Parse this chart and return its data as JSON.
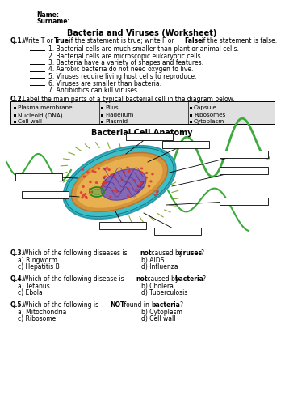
{
  "title": "Bacteria and Viruses (Worksheet)",
  "bg_color": "#ffffff",
  "name_label": "Name:",
  "surname_label": "Surname:",
  "q1_items": [
    "1. Bacterial cells are much smaller than plant or animal cells.",
    "2. Bacterial cells are microscopic eukaryotic cells.",
    "3. Bacteria have a variety of shapes and features.",
    "4. Aerobic bacteria do not need oxygen to live.",
    "5. Viruses require living host cells to reproduce.",
    "6. Viruses are smaller than bacteria.",
    "7. Antibiotics can kill viruses."
  ],
  "q2_col1": [
    "Plasma membrane",
    "Nucleoid (DNA)",
    "Cell wall"
  ],
  "q2_col2": [
    "Pilus",
    "Flagellum",
    "Plasmid"
  ],
  "q2_col3": [
    "Capsule",
    "Ribosomes",
    "Cytoplasm"
  ],
  "diagram_title": "Bacterial Cell Anatomy",
  "q3_options": [
    "a) Ringworm",
    "b) AIDS",
    "c) Hepatitis B",
    "d) Influenza"
  ],
  "q4_options": [
    "a) Tetanus",
    "b) Cholera",
    "c) Ebola",
    "d) Tuberculosis"
  ],
  "q5_options": [
    "a) Mitochondria",
    "b) Cytoplasm",
    "c) Ribosome",
    "d) Cell wall"
  ],
  "table_bg": "#e0e0e0",
  "cell_teal": "#3AADBB",
  "cell_orange": "#D4943A",
  "cell_light_orange": "#E8B860",
  "cell_purple": "#8B6FC8",
  "cell_red": "#CC3333",
  "cell_green_dark": "#4A7A2A",
  "cell_green_flag": "#3CAA3C",
  "cell_yellow_green": "#8AAA30"
}
